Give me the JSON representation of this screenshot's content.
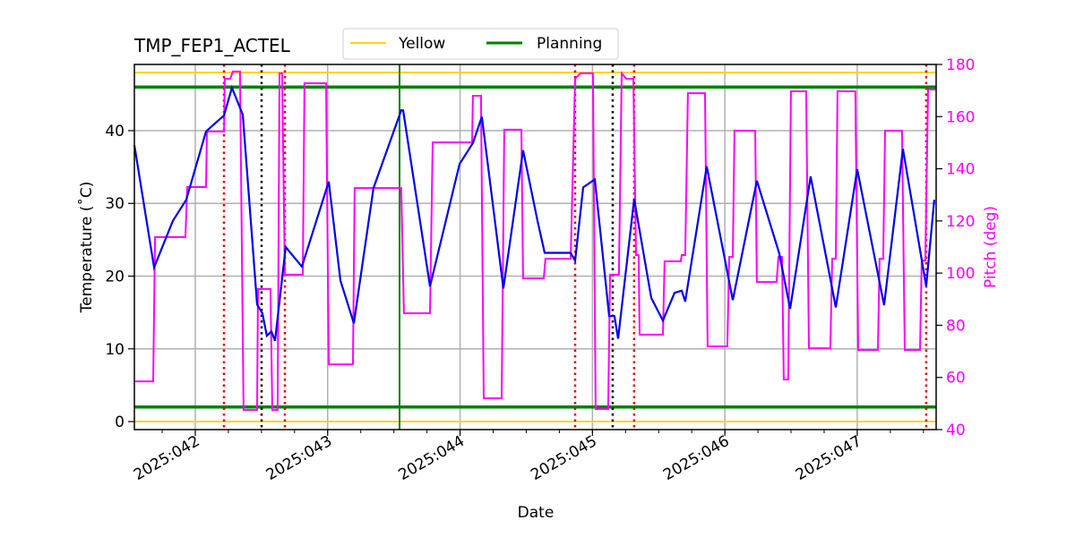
{
  "chart_data": {
    "type": "line",
    "title": "TMP_FEP1_ACTEL",
    "xlabel": "Date",
    "ylabel": "Temperature ($^\\circ$C)",
    "ylabel_display": "Temperature (˚C)",
    "y2label": "Pitch (deg)",
    "xlim": [
      41.54,
      47.596
    ],
    "ylim": [
      -1.1,
      49.1
    ],
    "y2lim": [
      40,
      180
    ],
    "grid": true,
    "legend_placement": "top-center",
    "x_ticks": [
      42,
      43,
      44,
      45,
      46,
      47
    ],
    "x_tick_labels": [
      "2025:042",
      "2025:043",
      "2025:044",
      "2025:045",
      "2025:046",
      "2025:047"
    ],
    "x_minor_step": 0.25,
    "y_ticks": [
      0,
      10,
      20,
      30,
      40
    ],
    "y2_ticks": [
      40,
      60,
      80,
      100,
      120,
      140,
      160,
      180
    ],
    "colors": {
      "temperature": "#0000ee",
      "pitch": "#ff00ff",
      "yellow": "#ffd21f",
      "planning": "#008000",
      "red_vline": "#e00000",
      "black_vline": "#000000",
      "green_vline": "#008000"
    },
    "legend": [
      {
        "name": "Yellow",
        "color": "#ffd21f"
      },
      {
        "name": "Planning",
        "color": "#008000"
      }
    ],
    "hlines": [
      {
        "series": "Yellow",
        "y": 48
      },
      {
        "series": "Yellow",
        "y": 0
      },
      {
        "series": "Planning",
        "y": 46
      },
      {
        "series": "Planning",
        "y": 2
      }
    ],
    "vlines_red_dotted": [
      42.217,
      42.677,
      44.869,
      45.315,
      47.521
    ],
    "vlines_black_dotted": [
      42.501,
      45.153
    ],
    "vline_green": [
      43.543
    ],
    "temperature": {
      "x": [
        41.54,
        41.689,
        41.831,
        41.932,
        42.081,
        42.217,
        42.277,
        42.359,
        42.467,
        42.507,
        42.541,
        42.575,
        42.602,
        42.683,
        42.805,
        43.008,
        43.096,
        43.198,
        43.346,
        43.556,
        43.57,
        43.773,
        43.996,
        44.097,
        44.165,
        44.327,
        44.476,
        44.585,
        44.639,
        44.835,
        44.869,
        44.93,
        45.018,
        45.126,
        45.166,
        45.194,
        45.315,
        45.444,
        45.532,
        45.62,
        45.674,
        45.701,
        45.863,
        46.06,
        46.242,
        46.411,
        46.493,
        46.648,
        46.838,
        47.0,
        47.203,
        47.345,
        47.521,
        47.582
      ],
      "y": [
        38.0,
        21.2,
        27.6,
        30.5,
        39.9,
        42.1,
        45.9,
        42.2,
        16.1,
        14.9,
        11.8,
        12.4,
        11.1,
        24.0,
        21.3,
        33.0,
        19.4,
        13.5,
        32.1,
        42.8,
        42.8,
        18.6,
        35.4,
        38.3,
        41.9,
        18.3,
        37.3,
        27.6,
        23.2,
        23.2,
        22.1,
        32.2,
        33.3,
        14.5,
        14.5,
        11.4,
        30.6,
        17.0,
        13.9,
        17.7,
        18.0,
        16.5,
        35.1,
        16.7,
        33.1,
        23.1,
        15.5,
        33.7,
        15.7,
        34.7,
        16.0,
        37.5,
        18.6,
        30.5
      ]
    },
    "pitch": {
      "x": [
        41.54,
        41.682,
        41.696,
        41.926,
        41.939,
        42.081,
        42.088,
        42.217,
        42.223,
        42.264,
        42.284,
        42.338,
        42.365,
        42.467,
        42.474,
        42.568,
        42.582,
        42.622,
        42.636,
        42.656,
        42.677,
        42.812,
        42.825,
        42.988,
        43.008,
        43.191,
        43.204,
        43.556,
        43.576,
        43.773,
        43.793,
        44.091,
        44.097,
        44.158,
        44.179,
        44.314,
        44.334,
        44.463,
        44.476,
        44.632,
        44.645,
        44.835,
        44.869,
        44.909,
        45.004,
        45.024,
        45.119,
        45.133,
        45.2,
        45.221,
        45.254,
        45.309,
        45.329,
        45.349,
        45.356,
        45.532,
        45.545,
        45.667,
        45.674,
        45.701,
        45.721,
        45.85,
        45.87,
        46.019,
        46.033,
        46.06,
        46.073,
        46.229,
        46.242,
        46.391,
        46.405,
        46.432,
        46.445,
        46.479,
        46.499,
        46.614,
        46.635,
        46.797,
        46.811,
        46.838,
        46.851,
        46.986,
        47.007,
        47.156,
        47.169,
        47.196,
        47.21,
        47.338,
        47.359,
        47.474,
        47.487,
        47.514,
        47.535,
        47.596
      ],
      "y": [
        58.5,
        58.5,
        113.8,
        113.8,
        133.0,
        133.0,
        154.3,
        154.3,
        174.5,
        174.5,
        177.3,
        177.3,
        47.5,
        47.5,
        93.9,
        93.9,
        47.5,
        47.5,
        176.6,
        176.6,
        99.4,
        99.4,
        172.8,
        172.8,
        65.0,
        65.0,
        132.6,
        132.6,
        84.6,
        84.6,
        150.1,
        150.1,
        168.0,
        168.0,
        52.0,
        52.0,
        155.0,
        155.0,
        98.0,
        98.0,
        105.5,
        105.5,
        174.5,
        176.6,
        176.6,
        47.9,
        47.9,
        99.4,
        99.4,
        176.6,
        174.5,
        174.5,
        106.9,
        106.9,
        76.4,
        76.4,
        104.5,
        104.5,
        106.9,
        106.9,
        169.0,
        169.0,
        71.9,
        71.9,
        106.2,
        106.2,
        154.6,
        154.6,
        96.6,
        96.6,
        106.2,
        106.2,
        59.2,
        59.2,
        169.7,
        169.7,
        71.2,
        71.2,
        105.5,
        105.5,
        169.7,
        169.7,
        70.5,
        70.5,
        105.5,
        105.5,
        154.6,
        154.6,
        70.5,
        70.5,
        104.8,
        104.8,
        170.4,
        170.4
      ]
    }
  }
}
